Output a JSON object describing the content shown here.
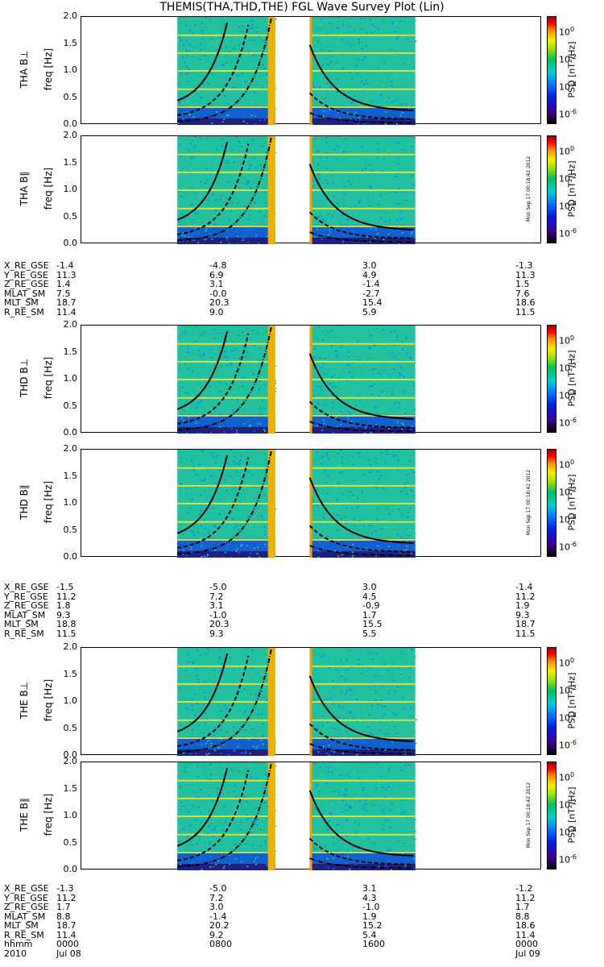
{
  "title": "THEMIS(THA,THD,THE) FGL Wave Survey Plot (Lin)",
  "chart_data": {
    "type": "heatmap",
    "xrange_hours": [
      0,
      24
    ],
    "yrange_hz": [
      0,
      2.0
    ],
    "y_ticks": [
      "0.0",
      "0.5",
      "1.0",
      "1.5",
      "2.0"
    ],
    "colorbar_ticks": [
      "10",
      "10",
      "10",
      "10"
    ],
    "colorbar_exponents": [
      "0",
      "-2",
      "-4",
      "-6"
    ],
    "colorbar_label": "PSD [nT²/Hz]",
    "panels": [
      {
        "label": "THA B⊥",
        "ylabel": "freq [Hz]",
        "data_start_h": 5.0,
        "data_end_h": 17.4,
        "gap": [
          10.1,
          11.9
        ]
      },
      {
        "label": "THA B∥",
        "ylabel": "freq [Hz]",
        "data_start_h": 5.0,
        "data_end_h": 17.4,
        "gap": [
          10.1,
          11.9
        ]
      },
      {
        "label": "THD B⊥",
        "ylabel": "freq [Hz]",
        "data_start_h": 5.0,
        "data_end_h": 17.4,
        "gap": [
          10.1,
          11.9
        ]
      },
      {
        "label": "THD B∥",
        "ylabel": "freq [Hz]",
        "data_start_h": 5.0,
        "data_end_h": 17.4,
        "gap": [
          10.1,
          11.9
        ]
      },
      {
        "label": "THE B⊥",
        "ylabel": "freq [Hz]",
        "data_start_h": 5.0,
        "data_end_h": 17.4,
        "gap": [
          10.1,
          11.9
        ]
      },
      {
        "label": "THE B∥",
        "ylabel": "freq [Hz]",
        "data_start_h": 5.0,
        "data_end_h": 17.4,
        "gap": [
          10.1,
          11.9
        ]
      }
    ],
    "stamp": "Mon Sep 17 00:18:42 2012",
    "ephemeris": [
      {
        "probe": "THA",
        "rows": [
          {
            "name": "X_RE_GSE",
            "values": [
              "-1.4",
              "-4.8",
              "3.0",
              "-1.3"
            ]
          },
          {
            "name": "Y_RE_GSE",
            "values": [
              "11.3",
              "6.9",
              "4.9",
              "11.3"
            ]
          },
          {
            "name": "Z_RE_GSE",
            "values": [
              "1.4",
              "3.1",
              "-1.4",
              "1.5"
            ]
          },
          {
            "name": "MLAT_SM",
            "values": [
              "7.5",
              "-0.0",
              "-2.7",
              "7.6"
            ]
          },
          {
            "name": "MLT_SM",
            "values": [
              "18.7",
              "20.3",
              "15.4",
              "18.6"
            ]
          },
          {
            "name": "R_RE_SM",
            "values": [
              "11.4",
              "9.0",
              "5.9",
              "11.5"
            ]
          }
        ]
      },
      {
        "probe": "THD",
        "rows": [
          {
            "name": "X_RE_GSE",
            "values": [
              "-1.5",
              "-5.0",
              "3.0",
              "-1.4"
            ]
          },
          {
            "name": "Y_RE_GSE",
            "values": [
              "11.2",
              "7.2",
              "4.5",
              "11.2"
            ]
          },
          {
            "name": "Z_RE_GSE",
            "values": [
              "1.8",
              "3.1",
              "-0.9",
              "1.9"
            ]
          },
          {
            "name": "MLAT_SM",
            "values": [
              "9.3",
              "-1.0",
              "1.7",
              "9.3"
            ]
          },
          {
            "name": "MLT_SM",
            "values": [
              "18.8",
              "20.3",
              "15.5",
              "18.7"
            ]
          },
          {
            "name": "R_RE_SM",
            "values": [
              "11.5",
              "9.3",
              "5.5",
              "11.5"
            ]
          }
        ]
      },
      {
        "probe": "THE",
        "rows": [
          {
            "name": "X_RE_GSE",
            "values": [
              "-1.3",
              "-5.0",
              "3.1",
              "-1.2"
            ]
          },
          {
            "name": "Y_RE_GSE",
            "values": [
              "11.2",
              "7.2",
              "4.3",
              "11.2"
            ]
          },
          {
            "name": "Z_RE_GSE",
            "values": [
              "1.7",
              "3.0",
              "-1.0",
              "1.7"
            ]
          },
          {
            "name": "MLAT_SM",
            "values": [
              "8.8",
              "-1.4",
              "1.9",
              "8.8"
            ]
          },
          {
            "name": "MLT_SM",
            "values": [
              "18.7",
              "20.2",
              "15.2",
              "18.6"
            ]
          },
          {
            "name": "R_RE_SM",
            "values": [
              "11.4",
              "9.2",
              "5.4",
              "11.4"
            ]
          }
        ]
      }
    ],
    "time_axis": {
      "hhmm_label": "hhmm",
      "hhmm": [
        "0000",
        "0800",
        "1600",
        "0000"
      ],
      "year": "2010",
      "dates": [
        "Jul 08",
        "Jul 09"
      ]
    }
  }
}
